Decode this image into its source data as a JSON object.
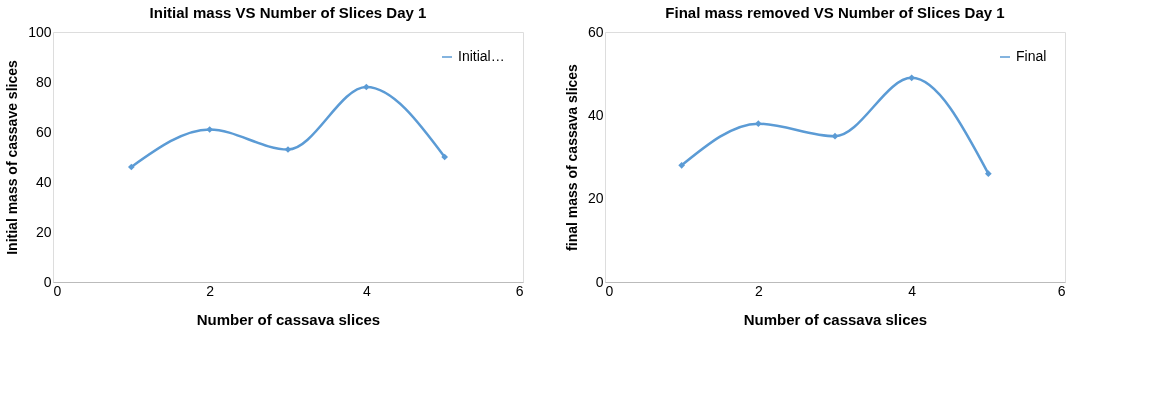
{
  "chart_data": [
    {
      "type": "line",
      "title": "Initial mass VS Number of Slices Day 1",
      "xlabel": "Number of cassava slices",
      "ylabel": "Initial mass of cassave slices",
      "x": [
        1,
        2,
        3,
        4,
        5
      ],
      "series": [
        {
          "name": "Initial…",
          "color": "#5b9bd5",
          "values": [
            46,
            61,
            53,
            78,
            50
          ]
        }
      ],
      "xlim": [
        0,
        6
      ],
      "xticks": [
        0,
        2,
        4,
        6
      ],
      "ylim": [
        0,
        100
      ],
      "yticks": [
        0,
        20,
        40,
        60,
        80,
        100
      ],
      "grid": false,
      "legend": "top right",
      "marker": "diamond",
      "line_style": "solid"
    },
    {
      "type": "line",
      "title": "Final mass removed VS Number of Slices Day 1",
      "xlabel": "Number of cassava slices",
      "ylabel": "final mass of cassava slices",
      "x": [
        1,
        2,
        3,
        4,
        5
      ],
      "series": [
        {
          "name": "Final",
          "color": "#5b9bd5",
          "values": [
            28,
            38,
            35,
            49,
            26
          ]
        }
      ],
      "xlim": [
        0,
        6
      ],
      "xticks": [
        0,
        2,
        4,
        6
      ],
      "ylim": [
        0,
        60
      ],
      "yticks": [
        0,
        20,
        40,
        60
      ],
      "grid": false,
      "legend": "top right",
      "marker": "diamond",
      "line_style": "solid"
    }
  ]
}
